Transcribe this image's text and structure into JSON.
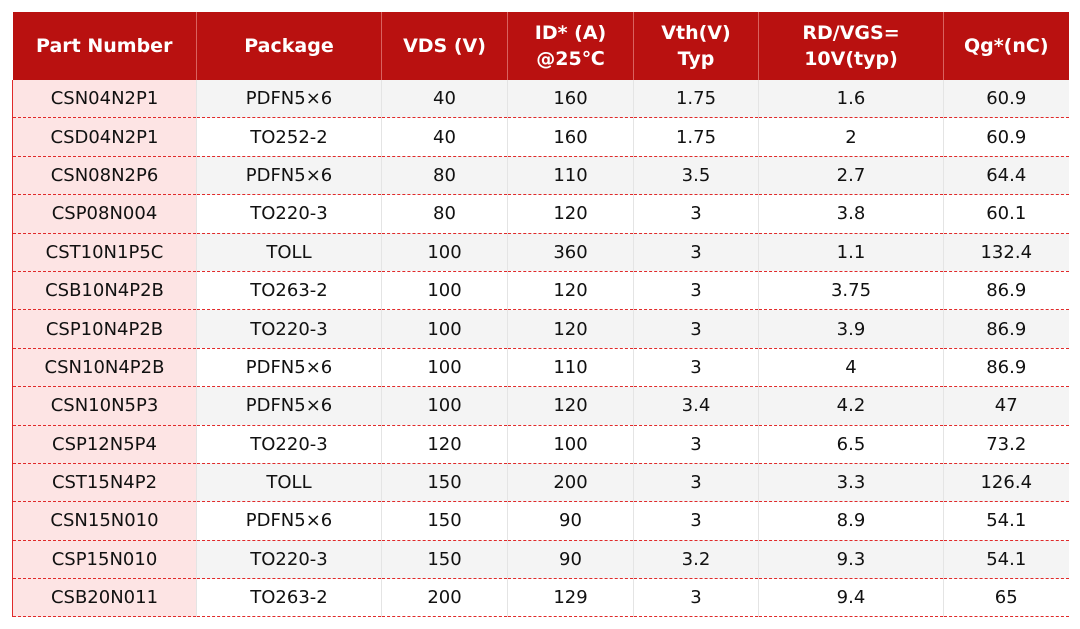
{
  "colors": {
    "header_bg": "#b91110",
    "first_col_bg": "#fde4e4",
    "row_separator": "#e02a2a"
  },
  "headers": [
    "Part Number",
    "Package",
    "VDS (V)",
    "ID* (A)\n@25℃",
    "Vth(V)\nTyp",
    "RD/VGS=\n10V(typ)",
    "Qg*(nC)"
  ],
  "rows": [
    [
      "CSN04N2P1",
      "PDFN5×6",
      "40",
      "160",
      "1.75",
      "1.6",
      "60.9"
    ],
    [
      "CSD04N2P1",
      "TO252-2",
      "40",
      "160",
      "1.75",
      "2",
      "60.9"
    ],
    [
      "CSN08N2P6",
      "PDFN5×6",
      "80",
      "110",
      "3.5",
      "2.7",
      "64.4"
    ],
    [
      "CSP08N004",
      "TO220-3",
      "80",
      "120",
      "3",
      "3.8",
      "60.1"
    ],
    [
      "CST10N1P5C",
      "TOLL",
      "100",
      "360",
      "3",
      "1.1",
      "132.4"
    ],
    [
      "CSB10N4P2B",
      "TO263-2",
      "100",
      "120",
      "3",
      "3.75",
      "86.9"
    ],
    [
      "CSP10N4P2B",
      "TO220-3",
      "100",
      "120",
      "3",
      "3.9",
      "86.9"
    ],
    [
      "CSN10N4P2B",
      "PDFN5×6",
      "100",
      "110",
      "3",
      "4",
      "86.9"
    ],
    [
      "CSN10N5P3",
      "PDFN5×6",
      "100",
      "120",
      "3.4",
      "4.2",
      "47"
    ],
    [
      "CSP12N5P4",
      "TO220-3",
      "120",
      "100",
      "3",
      "6.5",
      "73.2"
    ],
    [
      "CST15N4P2",
      "TOLL",
      "150",
      "200",
      "3",
      "3.3",
      "126.4"
    ],
    [
      "CSN15N010",
      "PDFN5×6",
      "150",
      "90",
      "3",
      "8.9",
      "54.1"
    ],
    [
      "CSP15N010",
      "TO220-3",
      "150",
      "90",
      "3.2",
      "9.3",
      "54.1"
    ],
    [
      "CSB20N011",
      "TO263-2",
      "200",
      "129",
      "3",
      "9.4",
      "65"
    ]
  ]
}
